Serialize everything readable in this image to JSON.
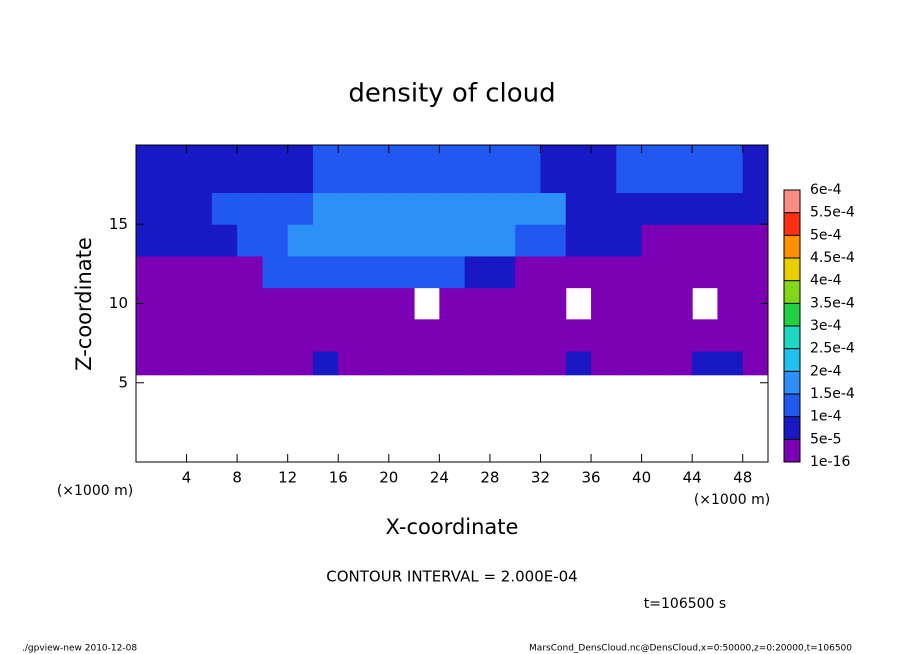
{
  "chart_data": {
    "type": "heatmap",
    "title": "density of cloud",
    "x_label": "X-coordinate",
    "y_label": "Z-coordinate",
    "x_unit": "(×1000 m)",
    "y_unit": "(×1000 m)",
    "xlim": [
      0,
      50
    ],
    "ylim": [
      0,
      20
    ],
    "xticks": [
      4,
      8,
      12,
      16,
      20,
      24,
      28,
      32,
      36,
      40,
      44,
      48
    ],
    "yticks": [
      5,
      10,
      15
    ],
    "x_edges": [
      0,
      2,
      4,
      6,
      8,
      10,
      12,
      14,
      16,
      18,
      20,
      22,
      24,
      26,
      28,
      30,
      32,
      34,
      36,
      38,
      40,
      42,
      44,
      46,
      48,
      50
    ],
    "y_edges": [
      5.5,
      7,
      9,
      11,
      13,
      15,
      17,
      20
    ],
    "z": [
      [
        2e-05,
        2e-05,
        2e-05,
        2e-05,
        2e-05,
        2e-05,
        2e-05,
        7e-05,
        2e-05,
        2e-05,
        2e-05,
        2e-05,
        2e-05,
        2e-05,
        2e-05,
        2e-05,
        2e-05,
        7e-05,
        2e-05,
        2e-05,
        2e-05,
        2e-05,
        7e-05,
        7e-05,
        2e-05
      ],
      [
        2e-05,
        2e-05,
        2e-05,
        2e-05,
        2e-05,
        2e-05,
        2e-05,
        2e-05,
        2e-05,
        2e-05,
        2e-05,
        2e-05,
        2e-05,
        2e-05,
        2e-05,
        2e-05,
        2e-05,
        2e-05,
        2e-05,
        2e-05,
        2e-05,
        2e-05,
        2e-05,
        2e-05,
        2e-05
      ],
      [
        2e-05,
        2e-05,
        2e-05,
        2e-05,
        2e-05,
        2e-05,
        2e-05,
        2e-05,
        2e-05,
        2e-05,
        2e-05,
        null,
        2e-05,
        2e-05,
        2e-05,
        2e-05,
        2e-05,
        null,
        2e-05,
        2e-05,
        2e-05,
        2e-05,
        null,
        2e-05,
        2e-05
      ],
      [
        2e-05,
        2e-05,
        2e-05,
        2e-05,
        2e-05,
        0.00012,
        0.00012,
        0.00012,
        0.00012,
        0.00012,
        0.00012,
        0.00012,
        0.00012,
        7e-05,
        7e-05,
        2e-05,
        2e-05,
        2e-05,
        2e-05,
        2e-05,
        2e-05,
        2e-05,
        2e-05,
        2e-05,
        2e-05
      ],
      [
        7e-05,
        7e-05,
        7e-05,
        7e-05,
        0.00012,
        0.00012,
        0.00017,
        0.00017,
        0.00017,
        0.00017,
        0.00017,
        0.00017,
        0.00017,
        0.00017,
        0.00017,
        0.00012,
        0.00012,
        7e-05,
        7e-05,
        7e-05,
        2e-05,
        2e-05,
        2e-05,
        2e-05,
        2e-05
      ],
      [
        7e-05,
        7e-05,
        7e-05,
        0.00012,
        0.00012,
        0.00012,
        0.00012,
        0.00017,
        0.00017,
        0.00017,
        0.00017,
        0.00017,
        0.00017,
        0.00017,
        0.00017,
        0.00017,
        0.00017,
        7e-05,
        7e-05,
        7e-05,
        7e-05,
        7e-05,
        7e-05,
        7e-05,
        7e-05
      ],
      [
        7e-05,
        7e-05,
        7e-05,
        7e-05,
        7e-05,
        7e-05,
        7e-05,
        0.00012,
        0.00012,
        0.00012,
        0.00012,
        0.00012,
        0.00012,
        0.00012,
        0.00012,
        0.00012,
        7e-05,
        7e-05,
        7e-05,
        0.00012,
        0.00012,
        0.00012,
        0.00012,
        0.00012,
        7e-05
      ]
    ],
    "levels": [
      1e-16,
      {
        "value": 5e-05,
        "label": "5e-5"
      },
      {
        "value": 0.0001,
        "label": "1e-4"
      },
      {
        "value": 0.00015,
        "label": "1.5e-4"
      },
      {
        "value": 0.0002,
        "label": "2e-4"
      },
      {
        "value": 0.00025,
        "label": "2.5e-4"
      },
      {
        "value": 0.0003,
        "label": "3e-4"
      },
      {
        "value": 0.00035,
        "label": "3.5e-4"
      },
      {
        "value": 0.0004,
        "label": "4e-4"
      },
      {
        "value": 0.00045,
        "label": "4.5e-4"
      },
      {
        "value": 0.0005,
        "label": "5e-4"
      },
      {
        "value": 0.00055,
        "label": "5.5e-4"
      },
      {
        "value": 0.0006,
        "label": "6e-4"
      }
    ],
    "colors": [
      "#7c00b4",
      "#1818c4",
      "#2058f0",
      "#2c90f8",
      "#20c0f0",
      "#20d8c0",
      "#20d040",
      "#80d818",
      "#e8d000",
      "#ff9000",
      "#ff3010",
      "#ff8c80"
    ],
    "annotations": [
      "CONTOUR INTERVAL = 2.000E-04",
      "t=106500 s"
    ],
    "footer_left": "./gpview-new  2010-12-08",
    "footer_right": "MarsCond_DensCloud.nc@DensCloud,x=0:50000,z=0:20000,t=106500"
  }
}
